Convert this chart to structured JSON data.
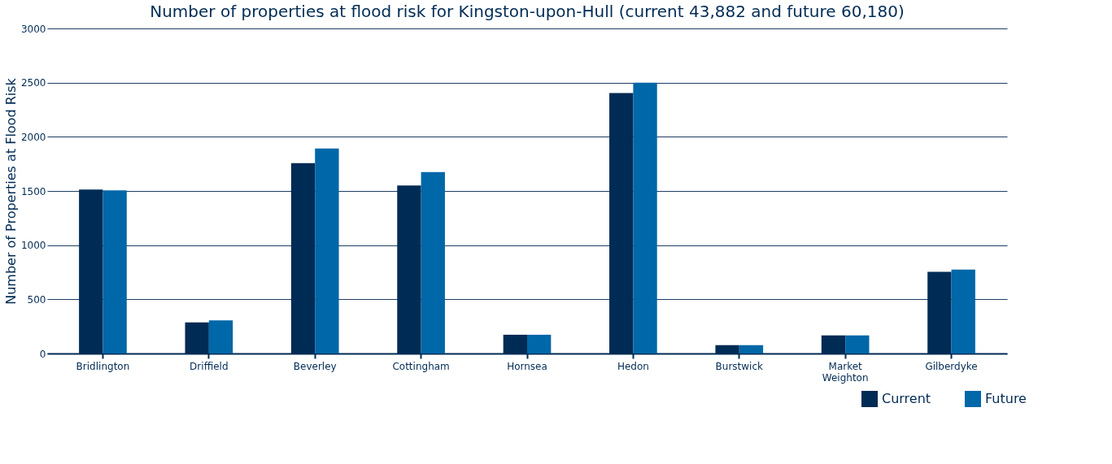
{
  "chart_data": {
    "type": "bar",
    "title": "Number of properties at flood risk for Kingston-upon-Hull (current 43,882 and future 60,180)",
    "ylabel": "Number of Properties at Flood Risk",
    "categories": [
      "Bridlington",
      "Driffield",
      "Beverley",
      "Cottingham",
      "Hornsea",
      "Hedon",
      "Burstwick",
      "Market Weighton",
      "Gilberdyke"
    ],
    "series": [
      {
        "name": "Current",
        "color": "#002b54",
        "values": [
          1514,
          286,
          1757,
          1551,
          173,
          2404,
          77,
          167,
          754
        ]
      },
      {
        "name": "Future",
        "color": "#0067a8",
        "values": [
          1506,
          306,
          1891,
          1674,
          173,
          2500,
          77,
          167,
          774
        ]
      }
    ],
    "ylim": [
      0,
      3000
    ],
    "yticks": [
      0,
      500,
      1000,
      1500,
      2000,
      2500,
      3000
    ],
    "grid": "y",
    "legend": "bottom right"
  }
}
